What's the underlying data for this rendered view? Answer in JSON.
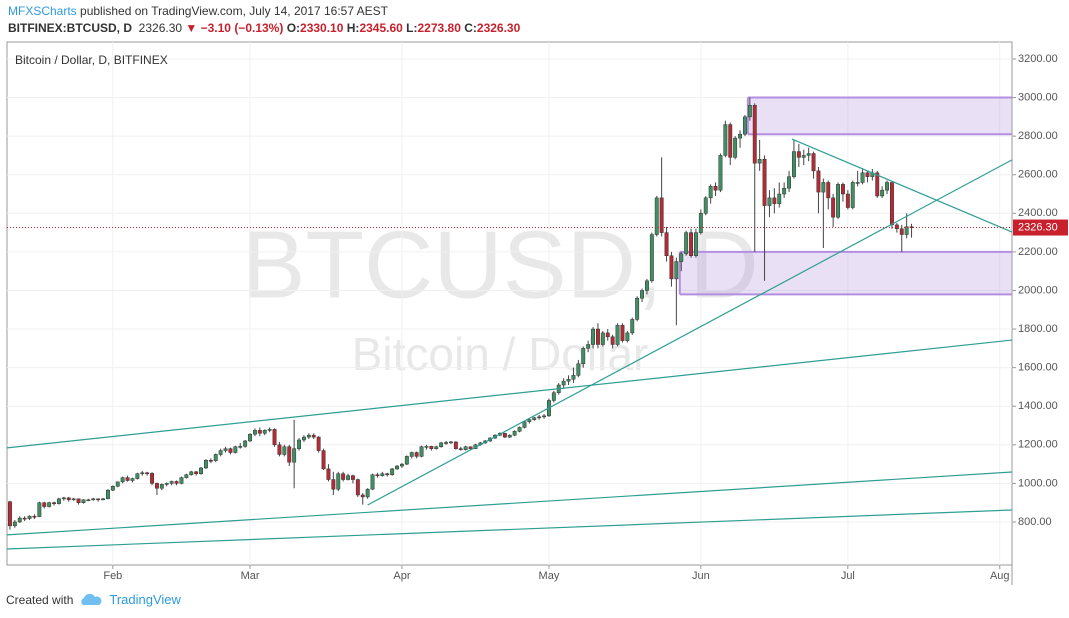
{
  "header": {
    "publisher": "MFXSCharts",
    "published": "published on TradingView.com, July 14, 2017 16:57 AEST",
    "symbol": "BITFINEX:BTCUSD, D",
    "price": "2326.30",
    "change": "▼ −3.10 (−0.13%)",
    "ohlc": [
      {
        "label": "O:",
        "value": "2330.10"
      },
      {
        "label": "H:",
        "value": "2345.60"
      },
      {
        "label": "L:",
        "value": "2273.80"
      },
      {
        "label": "C:",
        "value": "2326.30"
      }
    ]
  },
  "footer": {
    "created": "Created with",
    "brand": "TradingView"
  },
  "chart_data": {
    "type": "candlestick",
    "title": "Bitcoin / Dollar, D, BITFINEX",
    "watermark": "BTCUSD, D",
    "watermark_sub": "Bitcoin / Dollar",
    "up_color": "#3f8f63",
    "down_color": "#b42a35",
    "line_color": "#2f9e94",
    "zone_color": "#b48ee0",
    "last_price": {
      "value": 2326.3,
      "label": "2326.30"
    },
    "xlim": [
      -0.6,
      204.5
    ],
    "ylim": [
      577,
      3288
    ],
    "xticks": [
      {
        "value": 21,
        "label": "Feb"
      },
      {
        "value": 49,
        "label": "Mar"
      },
      {
        "value": 80,
        "label": "Apr"
      },
      {
        "value": 110,
        "label": "May"
      },
      {
        "value": 141,
        "label": "Jun"
      },
      {
        "value": 171,
        "label": "Jul"
      },
      {
        "value": 202,
        "label": "Aug"
      }
    ],
    "yticks": [
      {
        "value": 800,
        "label": "800.00"
      },
      {
        "value": 1000,
        "label": "1000.00"
      },
      {
        "value": 1200,
        "label": "1200.00"
      },
      {
        "value": 1400,
        "label": "1400.00"
      },
      {
        "value": 1600,
        "label": "1600.00"
      },
      {
        "value": 1800,
        "label": "1800.00"
      },
      {
        "value": 2000,
        "label": "2000.00"
      },
      {
        "value": 2200,
        "label": "2200.00"
      },
      {
        "value": 2400,
        "label": "2400.00"
      },
      {
        "value": 2600,
        "label": "2600.00"
      },
      {
        "value": 2800,
        "label": "2800.00"
      },
      {
        "value": 3000,
        "label": "3000.00"
      },
      {
        "value": 3200,
        "label": "3200.00"
      }
    ],
    "grid": true,
    "ohlc": [
      [
        905,
        910,
        760,
        780
      ],
      [
        780,
        810,
        770,
        800
      ],
      [
        800,
        830,
        795,
        820
      ],
      [
        820,
        830,
        805,
        818
      ],
      [
        818,
        835,
        810,
        830
      ],
      [
        830,
        840,
        815,
        828
      ],
      [
        828,
        905,
        825,
        900
      ],
      [
        900,
        905,
        870,
        880
      ],
      [
        880,
        905,
        875,
        900
      ],
      [
        900,
        905,
        885,
        895
      ],
      [
        895,
        925,
        890,
        920
      ],
      [
        920,
        930,
        910,
        925
      ],
      [
        925,
        930,
        905,
        915
      ],
      [
        915,
        925,
        910,
        920
      ],
      [
        920,
        922,
        890,
        900
      ],
      [
        900,
        918,
        895,
        915
      ],
      [
        915,
        920,
        908,
        915
      ],
      [
        915,
        925,
        910,
        920
      ],
      [
        920,
        922,
        905,
        915
      ],
      [
        915,
        925,
        912,
        920
      ],
      [
        920,
        970,
        918,
        965
      ],
      [
        965,
        990,
        960,
        985
      ],
      [
        985,
        1010,
        980,
        1008
      ],
      [
        1008,
        1035,
        1000,
        1030
      ],
      [
        1030,
        1040,
        1010,
        1015
      ],
      [
        1015,
        1030,
        1005,
        1025
      ],
      [
        1025,
        1055,
        1020,
        1050
      ],
      [
        1050,
        1065,
        1040,
        1055
      ],
      [
        1055,
        1060,
        1040,
        1052
      ],
      [
        1052,
        1058,
        990,
        1000
      ],
      [
        1000,
        1005,
        940,
        975
      ],
      [
        975,
        1000,
        965,
        995
      ],
      [
        995,
        1005,
        985,
        1000
      ],
      [
        1000,
        1015,
        990,
        1010
      ],
      [
        1010,
        1015,
        990,
        1000
      ],
      [
        1000,
        1035,
        995,
        1030
      ],
      [
        1030,
        1050,
        1025,
        1045
      ],
      [
        1045,
        1065,
        1040,
        1060
      ],
      [
        1060,
        1065,
        1040,
        1050
      ],
      [
        1050,
        1085,
        1045,
        1080
      ],
      [
        1080,
        1125,
        1075,
        1120
      ],
      [
        1120,
        1130,
        1105,
        1118
      ],
      [
        1118,
        1155,
        1110,
        1150
      ],
      [
        1150,
        1180,
        1140,
        1170
      ],
      [
        1170,
        1190,
        1160,
        1180
      ],
      [
        1180,
        1185,
        1150,
        1160
      ],
      [
        1160,
        1195,
        1155,
        1190
      ],
      [
        1190,
        1210,
        1180,
        1192
      ],
      [
        1192,
        1225,
        1185,
        1220
      ],
      [
        1220,
        1260,
        1215,
        1255
      ],
      [
        1255,
        1285,
        1245,
        1275
      ],
      [
        1275,
        1290,
        1245,
        1260
      ],
      [
        1260,
        1280,
        1250,
        1275
      ],
      [
        1275,
        1290,
        1265,
        1280
      ],
      [
        1280,
        1285,
        1190,
        1200
      ],
      [
        1200,
        1215,
        1140,
        1150
      ],
      [
        1150,
        1200,
        1140,
        1190
      ],
      [
        1190,
        1200,
        1090,
        1110
      ],
      [
        1110,
        1330,
        975,
        1180
      ],
      [
        1180,
        1235,
        1170,
        1225
      ],
      [
        1225,
        1250,
        1215,
        1240
      ],
      [
        1240,
        1260,
        1230,
        1250
      ],
      [
        1250,
        1260,
        1230,
        1240
      ],
      [
        1240,
        1245,
        1160,
        1170
      ],
      [
        1170,
        1180,
        1070,
        1075
      ],
      [
        1075,
        1100,
        1010,
        1020
      ],
      [
        1020,
        1060,
        940,
        970
      ],
      [
        970,
        1060,
        960,
        1050
      ],
      [
        1050,
        1060,
        1010,
        1020
      ],
      [
        1020,
        1050,
        1015,
        1040
      ],
      [
        1040,
        1045,
        1000,
        1020
      ],
      [
        1020,
        1025,
        930,
        940
      ],
      [
        940,
        950,
        890,
        930
      ],
      [
        930,
        975,
        920,
        970
      ],
      [
        970,
        1050,
        965,
        1045
      ],
      [
        1045,
        1055,
        1030,
        1040
      ],
      [
        1040,
        1060,
        1035,
        1050
      ],
      [
        1050,
        1055,
        1035,
        1045
      ],
      [
        1045,
        1080,
        1040,
        1075
      ],
      [
        1075,
        1095,
        1070,
        1090
      ],
      [
        1090,
        1105,
        1080,
        1100
      ],
      [
        1100,
        1145,
        1095,
        1140
      ],
      [
        1140,
        1165,
        1130,
        1160
      ],
      [
        1160,
        1165,
        1130,
        1140
      ],
      [
        1140,
        1195,
        1135,
        1190
      ],
      [
        1190,
        1200,
        1175,
        1192
      ],
      [
        1192,
        1195,
        1170,
        1180
      ],
      [
        1180,
        1195,
        1175,
        1190
      ],
      [
        1190,
        1215,
        1185,
        1210
      ],
      [
        1210,
        1220,
        1200,
        1212
      ],
      [
        1212,
        1220,
        1205,
        1215
      ],
      [
        1215,
        1218,
        1175,
        1180
      ],
      [
        1180,
        1190,
        1170,
        1175
      ],
      [
        1175,
        1195,
        1170,
        1190
      ],
      [
        1190,
        1192,
        1175,
        1180
      ],
      [
        1180,
        1205,
        1178,
        1200
      ],
      [
        1200,
        1215,
        1195,
        1210
      ],
      [
        1210,
        1225,
        1205,
        1220
      ],
      [
        1220,
        1240,
        1215,
        1235
      ],
      [
        1235,
        1255,
        1230,
        1250
      ],
      [
        1250,
        1265,
        1245,
        1260
      ],
      [
        1260,
        1262,
        1235,
        1240
      ],
      [
        1240,
        1255,
        1235,
        1250
      ],
      [
        1250,
        1275,
        1245,
        1270
      ],
      [
        1270,
        1295,
        1265,
        1290
      ],
      [
        1290,
        1325,
        1285,
        1320
      ],
      [
        1320,
        1335,
        1310,
        1330
      ],
      [
        1330,
        1345,
        1325,
        1340
      ],
      [
        1340,
        1355,
        1330,
        1345
      ],
      [
        1345,
        1360,
        1335,
        1350
      ],
      [
        1350,
        1440,
        1345,
        1430
      ],
      [
        1430,
        1480,
        1420,
        1470
      ],
      [
        1470,
        1520,
        1460,
        1510
      ],
      [
        1510,
        1545,
        1490,
        1530
      ],
      [
        1530,
        1560,
        1510,
        1540
      ],
      [
        1540,
        1600,
        1520,
        1560
      ],
      [
        1560,
        1640,
        1550,
        1620
      ],
      [
        1620,
        1710,
        1600,
        1700
      ],
      [
        1700,
        1740,
        1680,
        1720
      ],
      [
        1720,
        1810,
        1700,
        1800
      ],
      [
        1800,
        1830,
        1700,
        1720
      ],
      [
        1720,
        1790,
        1710,
        1780
      ],
      [
        1780,
        1800,
        1740,
        1760
      ],
      [
        1760,
        1770,
        1700,
        1720
      ],
      [
        1720,
        1830,
        1710,
        1820
      ],
      [
        1820,
        1830,
        1730,
        1740
      ],
      [
        1740,
        1790,
        1730,
        1780
      ],
      [
        1780,
        1860,
        1770,
        1850
      ],
      [
        1850,
        1970,
        1840,
        1960
      ],
      [
        1960,
        2010,
        1940,
        2000
      ],
      [
        2000,
        2060,
        1980,
        2050
      ],
      [
        2050,
        2300,
        2040,
        2290
      ],
      [
        2290,
        2490,
        2280,
        2480
      ],
      [
        2480,
        2690,
        2280,
        2300
      ],
      [
        2300,
        2330,
        2150,
        2180
      ],
      [
        2180,
        2200,
        2020,
        2060
      ],
      [
        2060,
        2170,
        1820,
        2150
      ],
      [
        2150,
        2200,
        2100,
        2190
      ],
      [
        2190,
        2310,
        2180,
        2300
      ],
      [
        2300,
        2320,
        2170,
        2180
      ],
      [
        2180,
        2320,
        2170,
        2300
      ],
      [
        2300,
        2420,
        2290,
        2400
      ],
      [
        2400,
        2490,
        2390,
        2480
      ],
      [
        2480,
        2550,
        2450,
        2540
      ],
      [
        2540,
        2560,
        2490,
        2520
      ],
      [
        2520,
        2710,
        2510,
        2700
      ],
      [
        2700,
        2880,
        2690,
        2860
      ],
      [
        2860,
        2870,
        2650,
        2690
      ],
      [
        2690,
        2800,
        2680,
        2790
      ],
      [
        2790,
        2830,
        2740,
        2810
      ],
      [
        2810,
        2910,
        2800,
        2900
      ],
      [
        2900,
        3000,
        2880,
        2960
      ],
      [
        2960,
        2970,
        2200,
        2660
      ],
      [
        2660,
        2780,
        2620,
        2680
      ],
      [
        2680,
        2700,
        2050,
        2440
      ],
      [
        2440,
        2520,
        2380,
        2480
      ],
      [
        2480,
        2530,
        2400,
        2450
      ],
      [
        2450,
        2560,
        2430,
        2500
      ],
      [
        2500,
        2560,
        2480,
        2530
      ],
      [
        2530,
        2620,
        2510,
        2590
      ],
      [
        2590,
        2780,
        2580,
        2720
      ],
      [
        2720,
        2760,
        2640,
        2690
      ],
      [
        2690,
        2730,
        2650,
        2700
      ],
      [
        2700,
        2740,
        2670,
        2710
      ],
      [
        2710,
        2720,
        2580,
        2620
      ],
      [
        2620,
        2640,
        2400,
        2510
      ],
      [
        2510,
        2580,
        2220,
        2560
      ],
      [
        2560,
        2570,
        2420,
        2480
      ],
      [
        2480,
        2500,
        2330,
        2380
      ],
      [
        2380,
        2560,
        2370,
        2550
      ],
      [
        2550,
        2560,
        2460,
        2500
      ],
      [
        2500,
        2520,
        2420,
        2430
      ],
      [
        2430,
        2570,
        2420,
        2560
      ],
      [
        2560,
        2620,
        2540,
        2560
      ],
      [
        2560,
        2630,
        2550,
        2610
      ],
      [
        2610,
        2620,
        2560,
        2590
      ],
      [
        2590,
        2630,
        2570,
        2610
      ],
      [
        2610,
        2620,
        2480,
        2490
      ],
      [
        2490,
        2540,
        2480,
        2520
      ],
      [
        2520,
        2570,
        2500,
        2560
      ],
      [
        2560,
        2560,
        2320,
        2340
      ],
      [
        2340,
        2350,
        2300,
        2320
      ],
      [
        2320,
        2340,
        2200,
        2290
      ],
      [
        2290,
        2400,
        2270,
        2330
      ],
      [
        2330.1,
        2345.6,
        2273.8,
        2326.3
      ]
    ],
    "trend_lines": [
      [
        [
          -0.6,
          1184
        ],
        [
          204.5,
          1743
        ]
      ],
      [
        [
          73,
          888
        ],
        [
          204.5,
          2677
        ]
      ],
      [
        [
          -0.6,
          733
        ],
        [
          204.5,
          1059
        ]
      ],
      [
        [
          -0.6,
          660
        ],
        [
          204.5,
          862
        ]
      ],
      [
        [
          159.6,
          2785
        ],
        [
          204.5,
          2303
        ]
      ]
    ],
    "zones": [
      [
        [
          150.6,
          2810
        ],
        [
          204.5,
          3000
        ]
      ],
      [
        [
          136.7,
          1980
        ],
        [
          204.5,
          2200
        ]
      ]
    ]
  }
}
